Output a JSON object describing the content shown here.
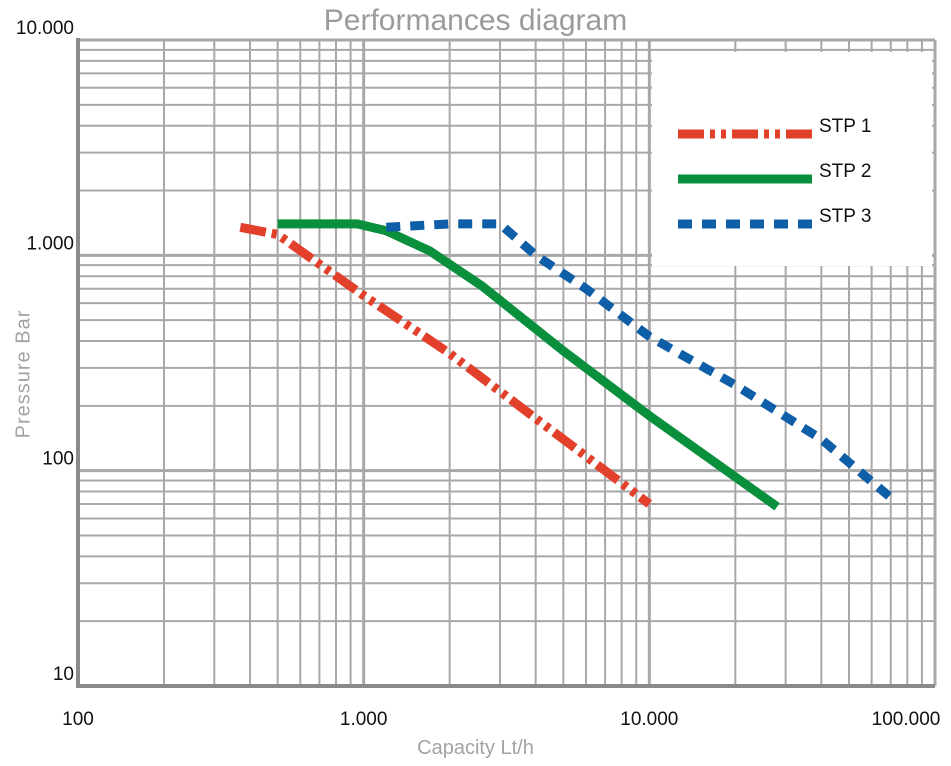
{
  "chart_data": {
    "type": "line",
    "title": "Performances diagram",
    "xlabel": "Capacity Lt/h",
    "ylabel": "Pressure  Bar",
    "x_scale": "log",
    "y_scale": "log",
    "xlim": [
      100,
      100000
    ],
    "ylim": [
      10,
      10000
    ],
    "x_ticks": [
      {
        "value": 100,
        "label": "100"
      },
      {
        "value": 1000,
        "label": "1.000"
      },
      {
        "value": 10000,
        "label": "10.000"
      },
      {
        "value": 100000,
        "label": "100.000"
      }
    ],
    "y_ticks": [
      {
        "value": 10,
        "label": "10"
      },
      {
        "value": 100,
        "label": "100"
      },
      {
        "value": 1000,
        "label": "1.000"
      },
      {
        "value": 10000,
        "label": "10.000"
      }
    ],
    "grid": true,
    "legend_position": "top-right",
    "series": [
      {
        "name": "STP 1",
        "color": "#e2402a",
        "style": "dash-dot-dot",
        "x": [
          370,
          500,
          1000,
          2000,
          5000,
          10000
        ],
        "y": [
          1350,
          1250,
          650,
          350,
          140,
          70
        ]
      },
      {
        "name": "STP 2",
        "color": "#0a8f3c",
        "style": "solid",
        "x": [
          500,
          950,
          1200,
          1700,
          2600,
          5000,
          10000,
          28000
        ],
        "y": [
          1400,
          1400,
          1300,
          1050,
          720,
          360,
          180,
          68
        ]
      },
      {
        "name": "STP 3",
        "color": "#0f5ea8",
        "style": "dashed",
        "x": [
          1200,
          2000,
          3000,
          4000,
          6000,
          10000,
          20000,
          40000,
          70000
        ],
        "y": [
          1350,
          1400,
          1400,
          1000,
          700,
          420,
          250,
          140,
          75
        ]
      }
    ]
  }
}
